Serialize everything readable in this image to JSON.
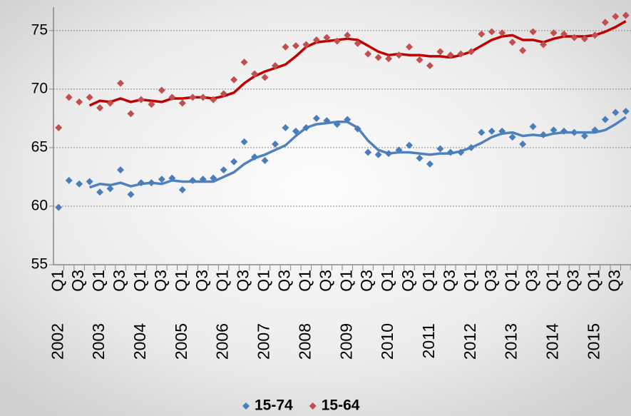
{
  "chart_data": {
    "type": "scatter",
    "years": [
      "2002",
      "2003",
      "2004",
      "2005",
      "2006",
      "2007",
      "2008",
      "2009",
      "2010",
      "2011",
      "2012",
      "2013",
      "2014",
      "2015"
    ],
    "categories": [
      "Q1",
      null,
      "Q3",
      null,
      "Q1",
      null,
      "Q3",
      null,
      "Q1",
      null,
      "Q3",
      null,
      "Q1",
      null,
      "Q3",
      null,
      "Q1",
      null,
      "Q3",
      null,
      "Q1",
      null,
      "Q3",
      null,
      "Q1",
      null,
      "Q3",
      null,
      "Q1",
      null,
      "Q3",
      null,
      "Q1",
      null,
      "Q3",
      null,
      "Q1",
      null,
      "Q3",
      null,
      "Q1",
      null,
      "Q3",
      null,
      "Q1",
      null,
      "Q3",
      null,
      "Q1",
      null,
      "Q3",
      null,
      "Q1",
      null,
      "Q3",
      null
    ],
    "series": [
      {
        "name": "15-74",
        "color": "#4a7ebb",
        "trend_color": "#4f81bd",
        "values": [
          59.9,
          62.2,
          61.9,
          62.1,
          61.2,
          61.5,
          63.1,
          61.0,
          62.0,
          62.0,
          62.3,
          62.4,
          61.4,
          62.2,
          62.3,
          62.4,
          63.1,
          63.8,
          65.5,
          64.2,
          63.9,
          65.3,
          66.7,
          66.4,
          66.7,
          67.5,
          67.3,
          67.0,
          67.4,
          66.6,
          64.6,
          64.4,
          64.5,
          64.8,
          65.2,
          64.1,
          63.6,
          64.9,
          64.6,
          64.6,
          65.0,
          66.3,
          66.4,
          66.4,
          65.9,
          65.3,
          66.8,
          66.1,
          66.5,
          66.4,
          66.3,
          66.0,
          66.5,
          67.4,
          68.0,
          68.1
        ],
        "trend": [
          null,
          null,
          null,
          61.6,
          61.9,
          61.8,
          62.0,
          61.7,
          61.9,
          62.0,
          61.9,
          62.2,
          62.1,
          62.1,
          62.1,
          62.1,
          62.5,
          62.9,
          63.6,
          64.1,
          64.4,
          64.8,
          65.2,
          66.0,
          66.7,
          67.0,
          67.1,
          67.2,
          67.2,
          66.7,
          65.6,
          64.8,
          64.5,
          64.6,
          64.6,
          64.5,
          64.4,
          64.5,
          64.5,
          64.7,
          65.0,
          65.4,
          65.9,
          66.2,
          66.3,
          66.0,
          66.1,
          66.0,
          66.2,
          66.3,
          66.3,
          66.3,
          66.3,
          66.5,
          67.0,
          67.6
        ]
      },
      {
        "name": "15-64",
        "color": "#c0504d",
        "trend_color": "#c00000",
        "values": [
          66.7,
          69.3,
          68.9,
          69.3,
          68.4,
          68.8,
          70.5,
          67.9,
          69.1,
          68.7,
          69.9,
          69.3,
          68.8,
          69.3,
          69.3,
          69.1,
          69.6,
          70.8,
          72.3,
          71.3,
          71.0,
          72.0,
          73.6,
          73.7,
          73.8,
          74.2,
          74.4,
          74.1,
          74.6,
          73.9,
          73.0,
          72.7,
          72.6,
          72.9,
          73.6,
          72.5,
          72.0,
          73.2,
          72.9,
          73.0,
          73.2,
          74.7,
          74.9,
          74.8,
          74.0,
          73.3,
          74.9,
          73.8,
          74.8,
          74.7,
          74.4,
          74.3,
          74.6,
          75.7,
          76.2,
          76.3
        ],
        "trend": [
          null,
          null,
          null,
          68.6,
          69.0,
          68.9,
          69.2,
          68.9,
          69.1,
          69.0,
          68.9,
          69.2,
          69.2,
          69.3,
          69.3,
          69.2,
          69.4,
          69.7,
          70.5,
          71.1,
          71.5,
          71.8,
          72.1,
          72.8,
          73.6,
          74.0,
          74.1,
          74.2,
          74.3,
          74.2,
          73.7,
          73.2,
          72.9,
          73.0,
          72.9,
          72.9,
          72.8,
          72.8,
          72.7,
          72.9,
          73.2,
          73.7,
          74.2,
          74.5,
          74.6,
          74.2,
          74.2,
          74.0,
          74.3,
          74.5,
          74.5,
          74.5,
          74.6,
          74.9,
          75.3,
          75.8
        ]
      }
    ],
    "ylim": [
      55,
      77
    ],
    "yticks": [
      55,
      60,
      65,
      70,
      75
    ],
    "grid": true
  }
}
